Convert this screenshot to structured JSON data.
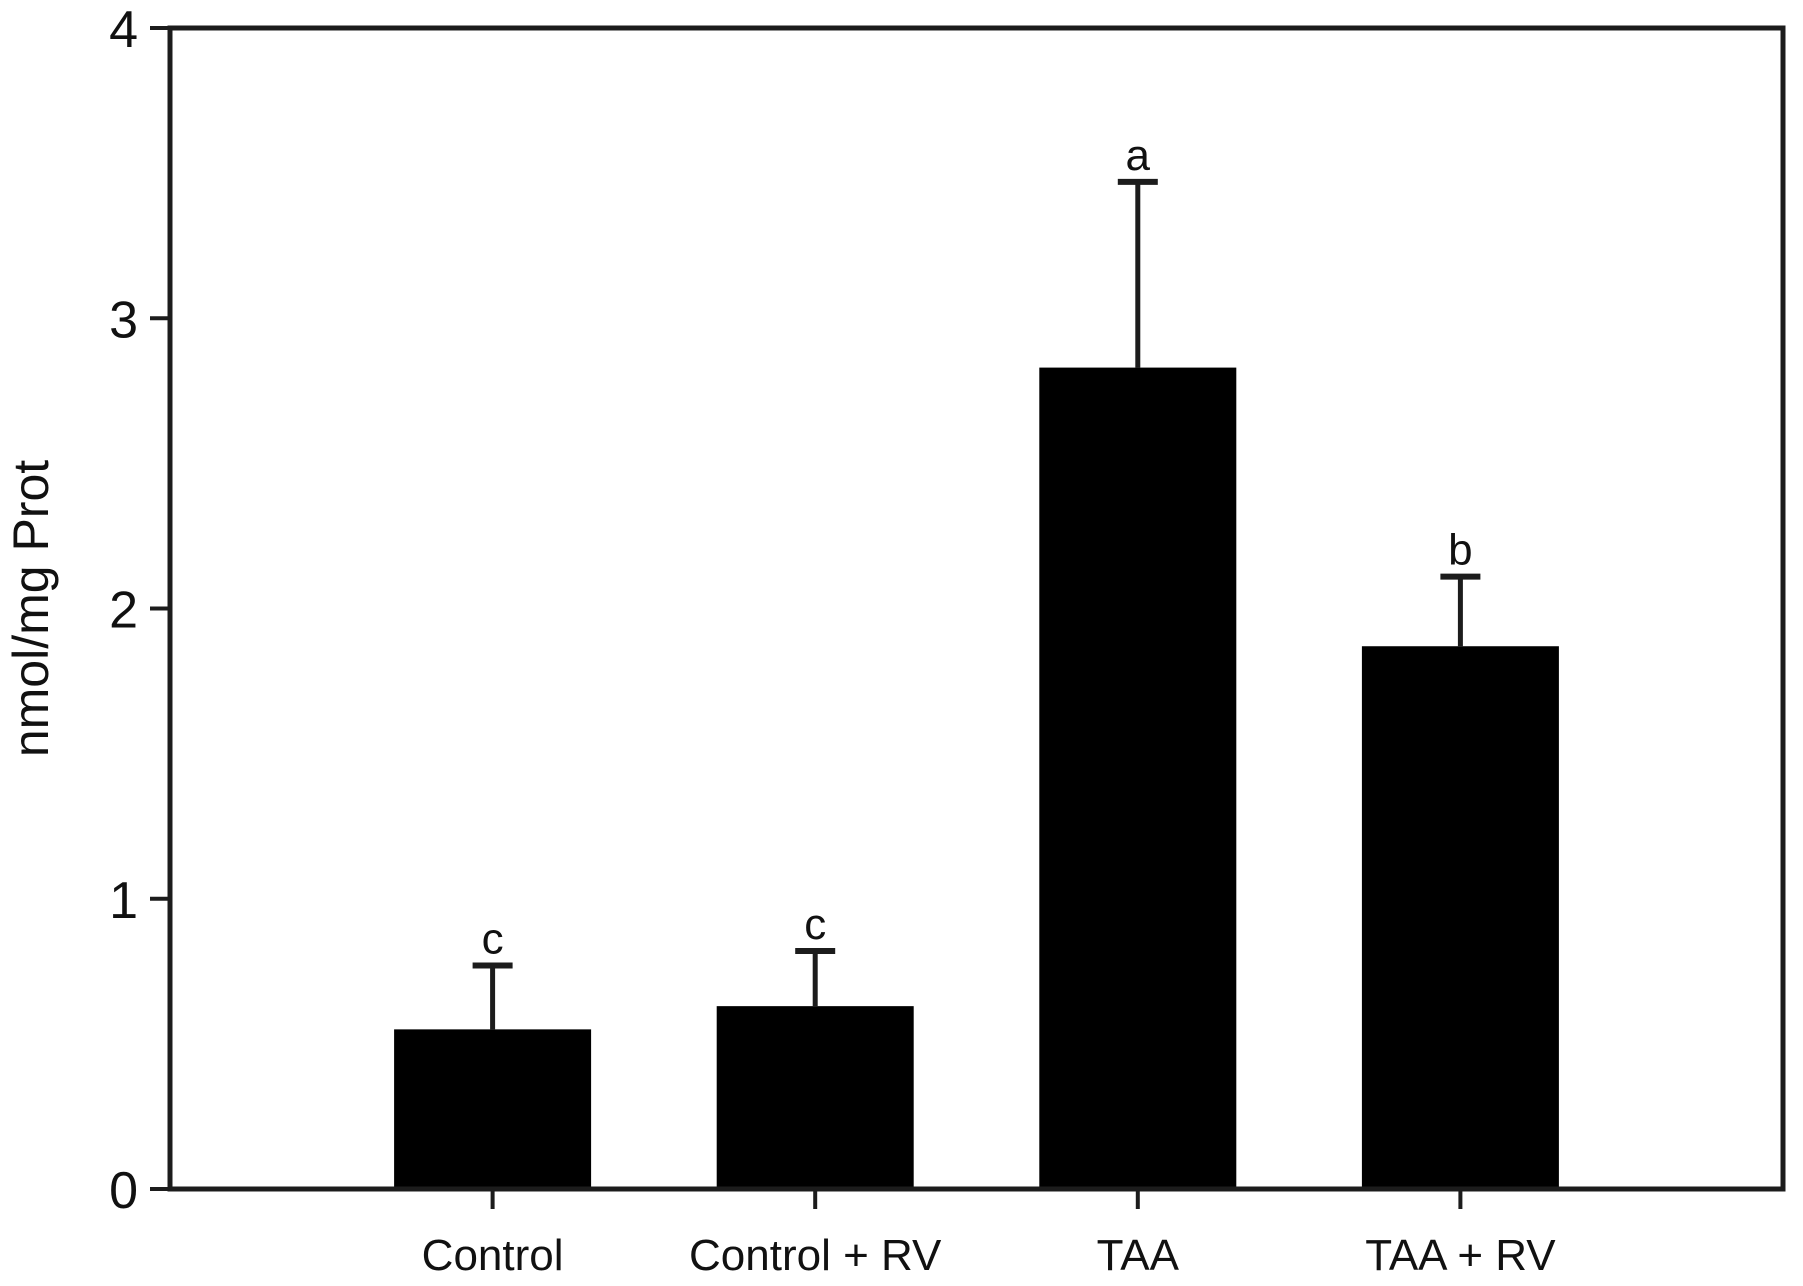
{
  "chart_data": {
    "type": "bar",
    "categories": [
      "Control",
      "Control + RV",
      "TAA",
      "TAA + RV"
    ],
    "values": [
      0.55,
      0.63,
      2.83,
      1.87
    ],
    "errors_upper": [
      0.22,
      0.19,
      0.64,
      0.24
    ],
    "sig_letters": [
      "c",
      "c",
      "a",
      "b"
    ],
    "title": "",
    "xlabel": "",
    "ylabel": "nmol/mg Prot",
    "ylim": [
      0,
      4
    ],
    "yticks": [
      "0",
      "1",
      "2",
      "3",
      "4"
    ],
    "grid": false,
    "legend_position": "none",
    "bar_color": "#000000",
    "axis_color": "#1c1c1c",
    "text_color": "#111111",
    "background_color": "#ffffff"
  }
}
